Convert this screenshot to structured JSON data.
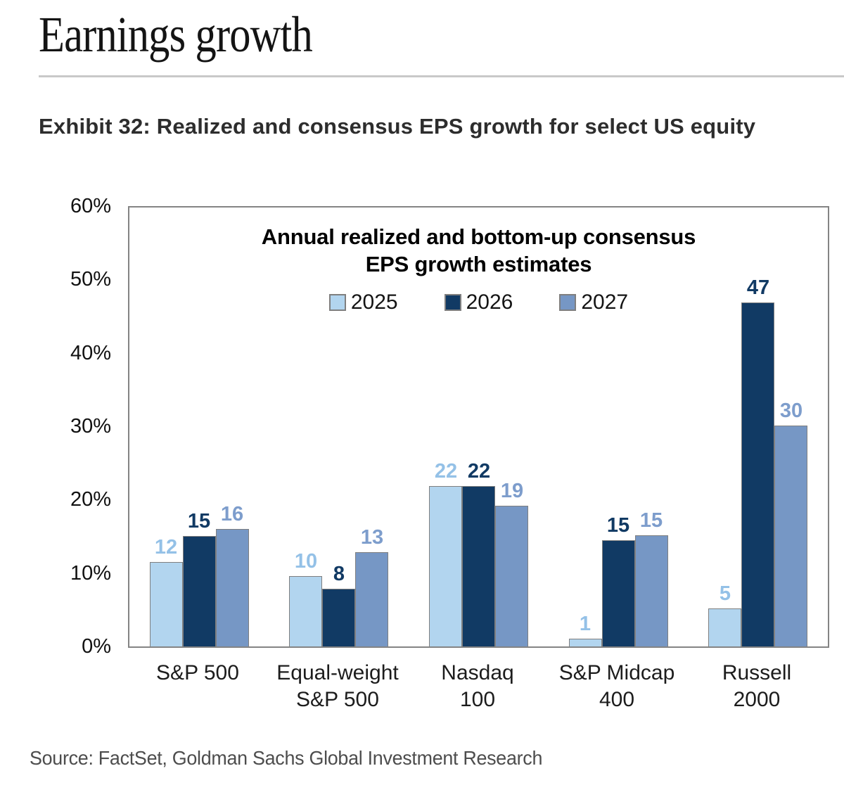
{
  "page": {
    "title": "Earnings growth",
    "exhibit_heading": "Exhibit 32: Realized and consensus EPS growth for select US equity",
    "source": "Source: FactSet, Goldman Sachs Global Investment Research"
  },
  "chart_data": {
    "type": "bar",
    "title": "Annual realized and bottom-up consensus EPS growth estimates",
    "title_lines": [
      "Annual realized and bottom-up consensus",
      "EPS growth estimates"
    ],
    "categories": [
      "S&P 500",
      "Equal-weight S&P 500",
      "Nasdaq 100",
      "S&P Midcap 400",
      "Russell 2000"
    ],
    "category_label_lines": [
      [
        "S&P 500"
      ],
      [
        "Equal-weight",
        "S&P 500"
      ],
      [
        "Nasdaq",
        "100"
      ],
      [
        "S&P Midcap",
        "400"
      ],
      [
        "Russell",
        "2000"
      ]
    ],
    "series": [
      {
        "name": "2025",
        "values": [
          12,
          10,
          22,
          1,
          5
        ],
        "display_heights_pct": [
          11.5,
          9.6,
          21.9,
          1.1,
          5.2
        ],
        "bar_color": "#B2D5EF",
        "label_color": "#94C1E7"
      },
      {
        "name": "2026",
        "values": [
          15,
          8,
          22,
          15,
          47
        ],
        "display_heights_pct": [
          15.1,
          7.9,
          21.9,
          14.5,
          47.0
        ],
        "bar_color": "#113A64",
        "label_color": "#113A64"
      },
      {
        "name": "2027",
        "values": [
          16,
          13,
          19,
          15,
          30
        ],
        "display_heights_pct": [
          16.1,
          12.9,
          19.2,
          15.2,
          30.2
        ],
        "bar_color": "#7697C5",
        "label_color": "#7D9DCC"
      }
    ],
    "xlabel": "",
    "ylabel": "",
    "ylim": [
      0,
      60
    ],
    "yticks": [
      "60%",
      "50%",
      "40%",
      "30%",
      "20%",
      "10%",
      "0%"
    ],
    "y_axis_format": "percent",
    "grid": false,
    "legend_position": "top-center",
    "bar_border_color": "#7f7f7f",
    "plot_border_color": "#848484"
  }
}
